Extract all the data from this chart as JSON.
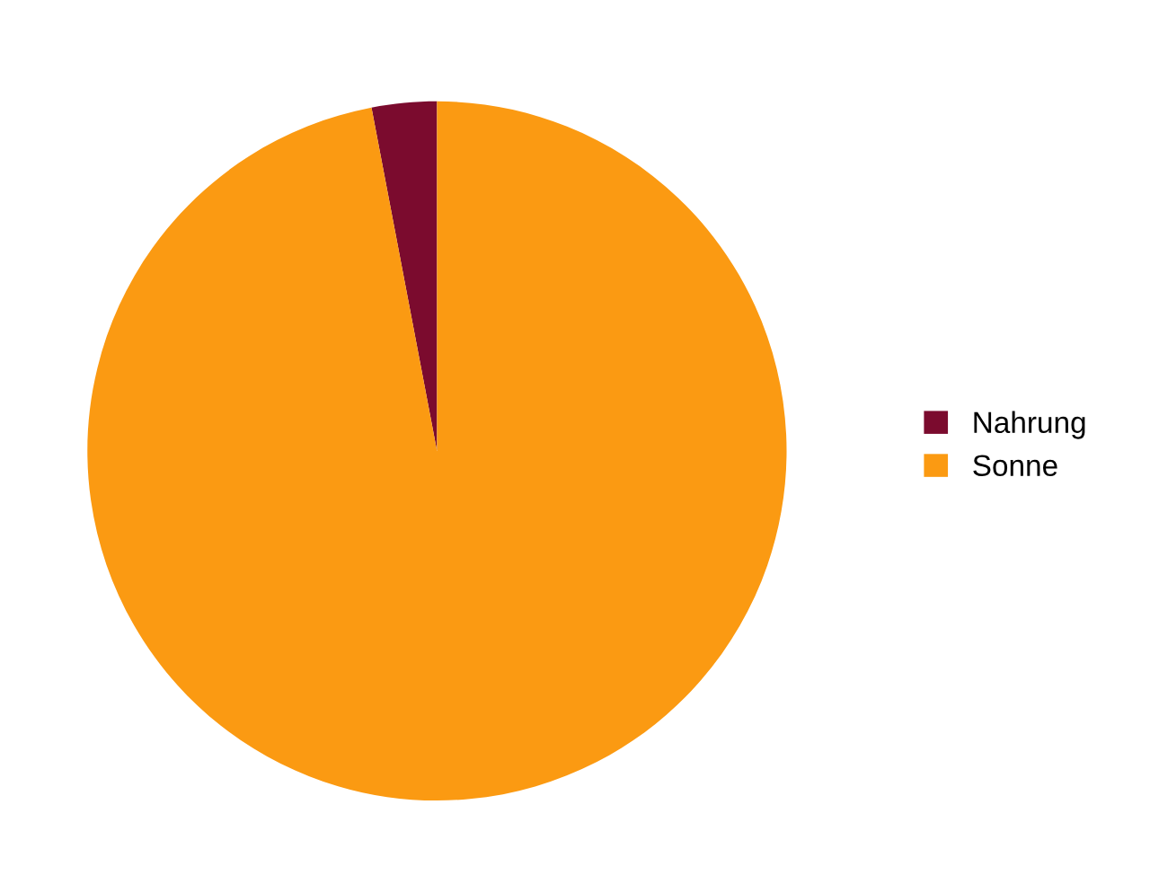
{
  "chart_data": {
    "type": "pie",
    "categories": [
      "Nahrung",
      "Sonne"
    ],
    "values": [
      3,
      97
    ],
    "colors": [
      "#7b0b2e",
      "#fb9a12"
    ],
    "legend": "right"
  }
}
